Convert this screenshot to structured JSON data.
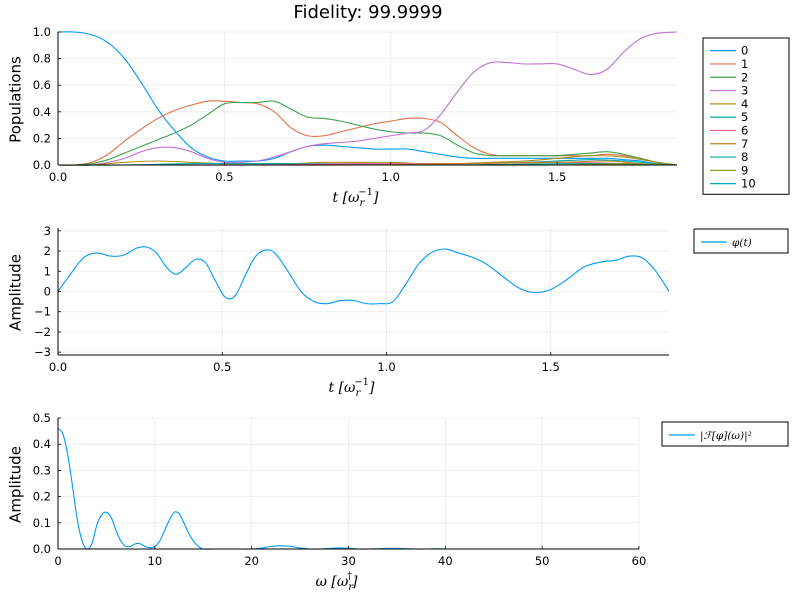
{
  "figure": {
    "title": "Fidelity: 99.9999"
  },
  "colors": {
    "palette": [
      "#009AFA",
      "#E26F46",
      "#3EA44E",
      "#C271D2",
      "#AD8F18",
      "#00A9AD",
      "#ED5E93",
      "#C68225",
      "#00A98E",
      "#8E971E",
      "#00A8CB"
    ],
    "grid": "#EBEBEB",
    "axis": "#000000"
  },
  "chart_data": [
    {
      "type": "line",
      "title": "Fidelity: 99.9999",
      "xlabel": "t [ω_r^{-1}]",
      "xlabel_base": "t [ω",
      "xlabel_sub": "r",
      "xlabel_sup": "−1",
      "xlabel_close": "]",
      "ylabel": "Populations",
      "xlim": [
        0.0,
        1.86
      ],
      "ylim": [
        0.0,
        1.0
      ],
      "xticks": [
        0.0,
        0.5,
        1.0,
        1.5
      ],
      "xtick_labels": [
        "0.0",
        "0.5",
        "1.0",
        "1.5"
      ],
      "yticks": [
        0.0,
        0.2,
        0.4,
        0.6,
        0.8,
        1.0
      ],
      "ytick_labels": [
        "0.0",
        "0.2",
        "0.4",
        "0.6",
        "0.8",
        "1.0"
      ],
      "grid": true,
      "legend_position": "outer-right",
      "series": [
        {
          "name": "0",
          "x": [
            0,
            0.05,
            0.1,
            0.15,
            0.2,
            0.25,
            0.3,
            0.35,
            0.4,
            0.45,
            0.5,
            0.55,
            0.6,
            0.65,
            0.7,
            0.75,
            0.8,
            0.85,
            0.9,
            0.95,
            1.0,
            1.05,
            1.1,
            1.15,
            1.2,
            1.25,
            1.3,
            1.35,
            1.4,
            1.45,
            1.5,
            1.55,
            1.6,
            1.65,
            1.7,
            1.75,
            1.8,
            1.86
          ],
          "y": [
            1.0,
            1.0,
            0.98,
            0.92,
            0.8,
            0.62,
            0.42,
            0.26,
            0.13,
            0.06,
            0.03,
            0.03,
            0.03,
            0.05,
            0.1,
            0.14,
            0.15,
            0.14,
            0.13,
            0.12,
            0.12,
            0.12,
            0.1,
            0.08,
            0.06,
            0.05,
            0.05,
            0.05,
            0.05,
            0.05,
            0.05,
            0.05,
            0.05,
            0.05,
            0.04,
            0.03,
            0.01,
            0.0
          ]
        },
        {
          "name": "1",
          "x": [
            0,
            0.05,
            0.1,
            0.15,
            0.2,
            0.25,
            0.3,
            0.35,
            0.4,
            0.45,
            0.5,
            0.55,
            0.6,
            0.65,
            0.7,
            0.75,
            0.8,
            0.85,
            0.9,
            0.95,
            1.0,
            1.05,
            1.1,
            1.15,
            1.2,
            1.25,
            1.3,
            1.35,
            1.4,
            1.45,
            1.5,
            1.55,
            1.6,
            1.65,
            1.7,
            1.75,
            1.8,
            1.86
          ],
          "y": [
            0.0,
            0.0,
            0.02,
            0.08,
            0.18,
            0.27,
            0.35,
            0.41,
            0.45,
            0.48,
            0.48,
            0.47,
            0.46,
            0.4,
            0.28,
            0.22,
            0.22,
            0.25,
            0.28,
            0.31,
            0.33,
            0.35,
            0.35,
            0.32,
            0.22,
            0.13,
            0.08,
            0.07,
            0.07,
            0.07,
            0.07,
            0.07,
            0.07,
            0.08,
            0.07,
            0.05,
            0.02,
            0.0
          ]
        },
        {
          "name": "2",
          "x": [
            0,
            0.05,
            0.1,
            0.15,
            0.2,
            0.25,
            0.3,
            0.35,
            0.4,
            0.45,
            0.5,
            0.55,
            0.6,
            0.65,
            0.7,
            0.75,
            0.8,
            0.85,
            0.9,
            0.95,
            1.0,
            1.05,
            1.1,
            1.15,
            1.2,
            1.25,
            1.3,
            1.35,
            1.4,
            1.45,
            1.5,
            1.55,
            1.6,
            1.65,
            1.7,
            1.75,
            1.8,
            1.86
          ],
          "y": [
            0.0,
            0.0,
            0.01,
            0.04,
            0.09,
            0.14,
            0.19,
            0.24,
            0.3,
            0.38,
            0.46,
            0.47,
            0.47,
            0.48,
            0.42,
            0.36,
            0.35,
            0.33,
            0.3,
            0.27,
            0.25,
            0.24,
            0.24,
            0.22,
            0.15,
            0.09,
            0.07,
            0.07,
            0.07,
            0.07,
            0.07,
            0.08,
            0.09,
            0.1,
            0.08,
            0.05,
            0.02,
            0.0
          ]
        },
        {
          "name": "3",
          "x": [
            0,
            0.05,
            0.1,
            0.15,
            0.2,
            0.25,
            0.3,
            0.35,
            0.4,
            0.45,
            0.5,
            0.55,
            0.6,
            0.65,
            0.7,
            0.75,
            0.8,
            0.85,
            0.9,
            0.95,
            1.0,
            1.05,
            1.1,
            1.15,
            1.2,
            1.25,
            1.3,
            1.35,
            1.4,
            1.45,
            1.5,
            1.55,
            1.6,
            1.65,
            1.7,
            1.75,
            1.8,
            1.86
          ],
          "y": [
            0.0,
            0.0,
            0.0,
            0.02,
            0.05,
            0.1,
            0.13,
            0.13,
            0.1,
            0.05,
            0.02,
            0.02,
            0.03,
            0.06,
            0.1,
            0.14,
            0.16,
            0.17,
            0.18,
            0.2,
            0.22,
            0.24,
            0.26,
            0.38,
            0.55,
            0.7,
            0.77,
            0.77,
            0.76,
            0.76,
            0.76,
            0.72,
            0.68,
            0.72,
            0.85,
            0.95,
            0.99,
            1.0
          ]
        },
        {
          "name": "4",
          "x": [
            0,
            0.1,
            0.2,
            0.3,
            0.4,
            0.5,
            0.6,
            0.7,
            0.8,
            0.9,
            1.0,
            1.1,
            1.2,
            1.3,
            1.4,
            1.5,
            1.6,
            1.7,
            1.8,
            1.86
          ],
          "y": [
            0.0,
            0.0,
            0.02,
            0.03,
            0.02,
            0.01,
            0.01,
            0.01,
            0.02,
            0.02,
            0.02,
            0.01,
            0.01,
            0.02,
            0.03,
            0.05,
            0.07,
            0.06,
            0.02,
            0.0
          ]
        },
        {
          "name": "5",
          "x": [
            0,
            0.2,
            0.4,
            0.6,
            0.8,
            1.0,
            1.2,
            1.4,
            1.6,
            1.7,
            1.8,
            1.86
          ],
          "y": [
            0.0,
            0.0,
            0.01,
            0.01,
            0.01,
            0.01,
            0.01,
            0.02,
            0.04,
            0.03,
            0.01,
            0.0
          ]
        },
        {
          "name": "6",
          "x": [
            0,
            0.3,
            0.6,
            0.9,
            1.2,
            1.5,
            1.7,
            1.86
          ],
          "y": [
            0.0,
            0.0,
            0.0,
            0.01,
            0.01,
            0.02,
            0.01,
            0.0
          ]
        },
        {
          "name": "7",
          "x": [
            0,
            0.3,
            0.6,
            0.9,
            1.2,
            1.5,
            1.65,
            1.75,
            1.86
          ],
          "y": [
            0.0,
            0.0,
            0.0,
            0.0,
            0.01,
            0.02,
            0.03,
            0.01,
            0.0
          ]
        },
        {
          "name": "8",
          "x": [
            0,
            0.3,
            0.6,
            0.9,
            1.2,
            1.5,
            1.7,
            1.86
          ],
          "y": [
            0.0,
            0.0,
            0.0,
            0.0,
            0.0,
            0.01,
            0.01,
            0.0
          ]
        },
        {
          "name": "9",
          "x": [
            0,
            0.3,
            0.6,
            0.9,
            1.2,
            1.5,
            1.7,
            1.86
          ],
          "y": [
            0.0,
            0.0,
            0.0,
            0.0,
            0.0,
            0.0,
            0.01,
            0.0
          ]
        },
        {
          "name": "10",
          "x": [
            0,
            0.5,
            1.0,
            1.5,
            1.86
          ],
          "y": [
            0.0,
            0.0,
            0.0,
            0.0,
            0.0
          ]
        }
      ]
    },
    {
      "type": "line",
      "title": "",
      "xlabel": "t [ω_r^{-1}]",
      "xlabel_base": "t [ω",
      "xlabel_sub": "r",
      "xlabel_sup": "−1",
      "xlabel_close": "]",
      "ylabel": "Amplitude",
      "xlim": [
        0.0,
        1.86
      ],
      "ylim": [
        -3.14,
        3.14
      ],
      "xticks": [
        0.0,
        0.5,
        1.0,
        1.5
      ],
      "xtick_labels": [
        "0.0",
        "0.5",
        "1.0",
        "1.5"
      ],
      "yticks": [
        -3,
        -2,
        -1,
        0,
        1,
        2,
        3
      ],
      "ytick_labels": [
        "−3",
        "−2",
        "−1",
        "0",
        "1",
        "2",
        "3"
      ],
      "grid": true,
      "legend_position": "outer-right",
      "series": [
        {
          "name": "φ(t)",
          "x": [
            0,
            0.04,
            0.08,
            0.12,
            0.16,
            0.2,
            0.24,
            0.27,
            0.3,
            0.33,
            0.36,
            0.39,
            0.42,
            0.45,
            0.48,
            0.51,
            0.54,
            0.57,
            0.6,
            0.63,
            0.66,
            0.7,
            0.74,
            0.78,
            0.82,
            0.86,
            0.9,
            0.94,
            0.98,
            1.02,
            1.06,
            1.1,
            1.14,
            1.18,
            1.22,
            1.26,
            1.3,
            1.35,
            1.4,
            1.45,
            1.5,
            1.55,
            1.6,
            1.65,
            1.7,
            1.74,
            1.78,
            1.82,
            1.86
          ],
          "y": [
            0.0,
            0.9,
            1.7,
            1.9,
            1.75,
            1.8,
            2.15,
            2.2,
            1.9,
            1.2,
            0.85,
            1.2,
            1.6,
            1.4,
            0.5,
            -0.3,
            -0.2,
            0.8,
            1.7,
            2.05,
            1.9,
            1.0,
            0.0,
            -0.5,
            -0.6,
            -0.45,
            -0.45,
            -0.6,
            -0.6,
            -0.5,
            0.4,
            1.4,
            1.95,
            2.1,
            1.9,
            1.7,
            1.4,
            0.8,
            0.2,
            -0.05,
            0.1,
            0.6,
            1.2,
            1.45,
            1.55,
            1.75,
            1.65,
            1.0,
            0.0
          ]
        }
      ]
    },
    {
      "type": "line",
      "title": "",
      "xlabel": "ω [ω_r^†]",
      "xlabel_base": "ω [ω",
      "xlabel_sub": "r",
      "xlabel_sup": "†",
      "xlabel_close": "]",
      "ylabel": "Amplitude",
      "xlim": [
        0,
        60
      ],
      "ylim": [
        0.0,
        0.5
      ],
      "xticks": [
        0,
        10,
        20,
        30,
        40,
        50,
        60
      ],
      "xtick_labels": [
        "0",
        "10",
        "20",
        "30",
        "40",
        "50",
        "60"
      ],
      "yticks": [
        0.0,
        0.1,
        0.2,
        0.3,
        0.4,
        0.5
      ],
      "ytick_labels": [
        "0.0",
        "0.1",
        "0.2",
        "0.3",
        "0.4",
        "0.5"
      ],
      "grid": true,
      "legend_position": "outer-right",
      "series": [
        {
          "name": "|ℱ[φ](ω)|²",
          "x": [
            0,
            0.5,
            1,
            1.5,
            2,
            2.5,
            3,
            3.5,
            4,
            4.5,
            5,
            5.5,
            6,
            6.5,
            7,
            7.5,
            8,
            8.5,
            9,
            9.5,
            10,
            10.5,
            11,
            11.5,
            12,
            12.5,
            13,
            13.5,
            14,
            14.5,
            15,
            16,
            17,
            18,
            19,
            20,
            21,
            22,
            23,
            24,
            25,
            26,
            27,
            28,
            29,
            30,
            31,
            32,
            33,
            34,
            35,
            36,
            37,
            38,
            39,
            40,
            42,
            45,
            50,
            55,
            60
          ],
          "y": [
            0.46,
            0.44,
            0.36,
            0.24,
            0.11,
            0.03,
            0.0,
            0.02,
            0.09,
            0.13,
            0.14,
            0.12,
            0.07,
            0.03,
            0.01,
            0.01,
            0.02,
            0.02,
            0.01,
            0.005,
            0.01,
            0.03,
            0.07,
            0.11,
            0.14,
            0.135,
            0.1,
            0.06,
            0.03,
            0.01,
            0.0,
            0.0,
            0.0,
            0.0,
            0.0,
            0.0,
            0.003,
            0.01,
            0.012,
            0.01,
            0.004,
            0.0,
            0.0,
            0.002,
            0.004,
            0.003,
            0.0,
            0.0,
            0.001,
            0.002,
            0.002,
            0.001,
            0.0,
            0.0,
            0.001,
            0.0,
            0.0,
            0.0,
            0.0,
            0.0,
            0.0
          ]
        }
      ]
    }
  ]
}
